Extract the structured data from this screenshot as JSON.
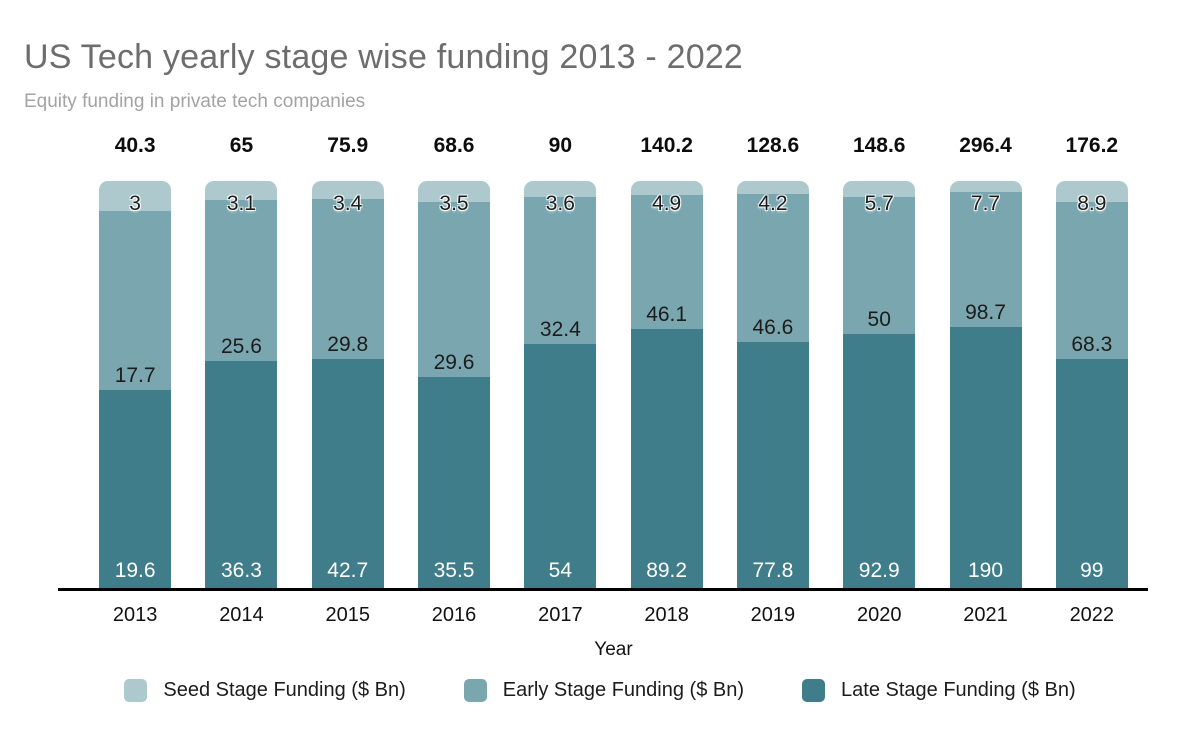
{
  "chart_data": {
    "type": "bar",
    "variant": "stacked-100-percent",
    "title": "US Tech yearly stage wise funding 2013 - 2022",
    "subtitle": "Equity funding in private tech companies",
    "xlabel": "Year",
    "grid": false,
    "legend_position": "bottom",
    "categories": [
      "2013",
      "2014",
      "2015",
      "2016",
      "2017",
      "2018",
      "2019",
      "2020",
      "2021",
      "2022"
    ],
    "totals": [
      40.3,
      65,
      75.9,
      68.6,
      90,
      140.2,
      128.6,
      148.6,
      296.4,
      176.2
    ],
    "series": [
      {
        "name": "Seed Stage Funding ($ Bn)",
        "color": "#adc9ce",
        "values": [
          3,
          3.1,
          3.4,
          3.5,
          3.6,
          4.9,
          4.2,
          5.7,
          7.7,
          8.9
        ]
      },
      {
        "name": "Early Stage Funding ($ Bn)",
        "color": "#7aa6af",
        "values": [
          17.7,
          25.6,
          29.8,
          29.6,
          32.4,
          46.1,
          46.6,
          50,
          98.7,
          68.3
        ]
      },
      {
        "name": "Late Stage Funding ($ Bn)",
        "color": "#3f7d8a",
        "values": [
          19.6,
          36.3,
          42.7,
          35.5,
          54,
          89.2,
          77.8,
          92.9,
          190,
          99
        ]
      }
    ],
    "colors": {
      "title_text": "#6d6d6d",
      "subtitle_text": "#a3a3a3",
      "label_text": "#1c1c1c",
      "late_label_text": "#ffffff",
      "axis": "#000000",
      "background": "#ffffff"
    }
  }
}
